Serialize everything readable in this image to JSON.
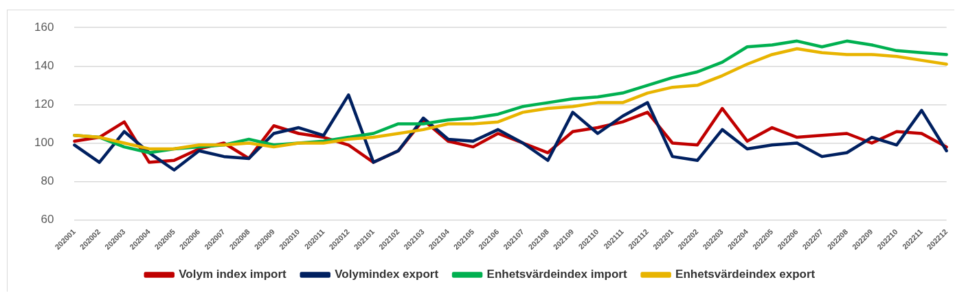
{
  "chart_data": {
    "type": "line",
    "categories": [
      "202001",
      "202002",
      "202003",
      "202004",
      "202005",
      "202006",
      "202007",
      "202008",
      "202009",
      "202010",
      "202011",
      "202012",
      "202101",
      "202102",
      "202103",
      "202104",
      "202105",
      "202106",
      "202107",
      "202108",
      "202109",
      "202110",
      "202111",
      "202112",
      "202201",
      "202202",
      "202203",
      "202204",
      "202205",
      "202206",
      "202207",
      "202208",
      "202209",
      "202210",
      "202211",
      "202212"
    ],
    "series": [
      {
        "name": "Volym index import",
        "color": "#c00000",
        "values": [
          101,
          103,
          111,
          90,
          91,
          97,
          100,
          92,
          109,
          105,
          103,
          99,
          90,
          96,
          112,
          101,
          98,
          105,
          100,
          95,
          106,
          108,
          111,
          116,
          100,
          99,
          118,
          101,
          108,
          103,
          104,
          105,
          100,
          106,
          105,
          98
        ]
      },
      {
        "name": "Volymindex export",
        "color": "#002060",
        "values": [
          99,
          90,
          106,
          95,
          86,
          96,
          93,
          92,
          105,
          108,
          104,
          125,
          90,
          96,
          113,
          102,
          101,
          107,
          100,
          91,
          116,
          105,
          114,
          121,
          93,
          91,
          107,
          97,
          99,
          100,
          93,
          95,
          103,
          99,
          117,
          96
        ]
      },
      {
        "name": "Enhetsvärdeindex import",
        "color": "#00b050",
        "values": [
          104,
          103,
          98,
          95,
          97,
          98,
          99,
          102,
          99,
          100,
          101,
          103,
          105,
          110,
          110,
          112,
          113,
          115,
          119,
          121,
          123,
          124,
          126,
          130,
          134,
          137,
          142,
          150,
          151,
          153,
          150,
          153,
          151,
          148,
          147,
          146
        ]
      },
      {
        "name": "Enhetsvärdeindex export",
        "color": "#e8b400",
        "values": [
          104,
          103,
          100,
          97,
          97,
          99,
          99,
          100,
          98,
          100,
          100,
          102,
          103,
          105,
          107,
          110,
          110,
          111,
          116,
          118,
          119,
          121,
          121,
          126,
          129,
          130,
          135,
          141,
          146,
          149,
          147,
          146,
          146,
          145,
          143,
          141
        ]
      }
    ],
    "ylim": [
      60,
      160
    ],
    "yticks": [
      60,
      80,
      100,
      120,
      140,
      160
    ],
    "grid": "y",
    "legend": "bottom",
    "marker": "none",
    "line_style": "solid"
  }
}
